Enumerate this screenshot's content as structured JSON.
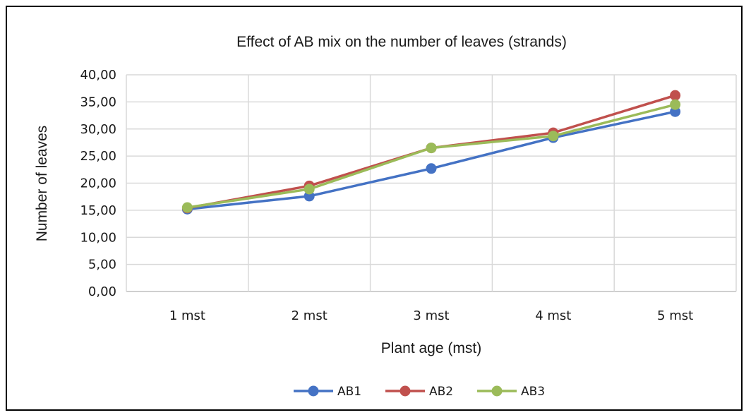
{
  "chart_data": {
    "type": "line",
    "title": "Effect of AB mix on the number of leaves (strands)",
    "xlabel": "Plant age (mst)",
    "ylabel": "Number of leaves",
    "categories": [
      "1 mst",
      "2 mst",
      "3 mst",
      "4 mst",
      "5 mst"
    ],
    "y_ticks": [
      "0,00",
      "5,00",
      "10,00",
      "15,00",
      "20,00",
      "25,00",
      "30,00",
      "35,00",
      "40,00"
    ],
    "ylim": [
      0,
      40
    ],
    "grid": true,
    "legend_position": "bottom",
    "series": [
      {
        "name": "AB1",
        "color": "#4472C4",
        "values": [
          15.2,
          17.6,
          22.7,
          28.4,
          33.2
        ]
      },
      {
        "name": "AB2",
        "color": "#C0504D",
        "values": [
          15.4,
          19.5,
          26.5,
          29.3,
          36.2
        ]
      },
      {
        "name": "AB3",
        "color": "#9BBB59",
        "values": [
          15.5,
          18.9,
          26.5,
          28.7,
          34.5
        ]
      }
    ]
  }
}
